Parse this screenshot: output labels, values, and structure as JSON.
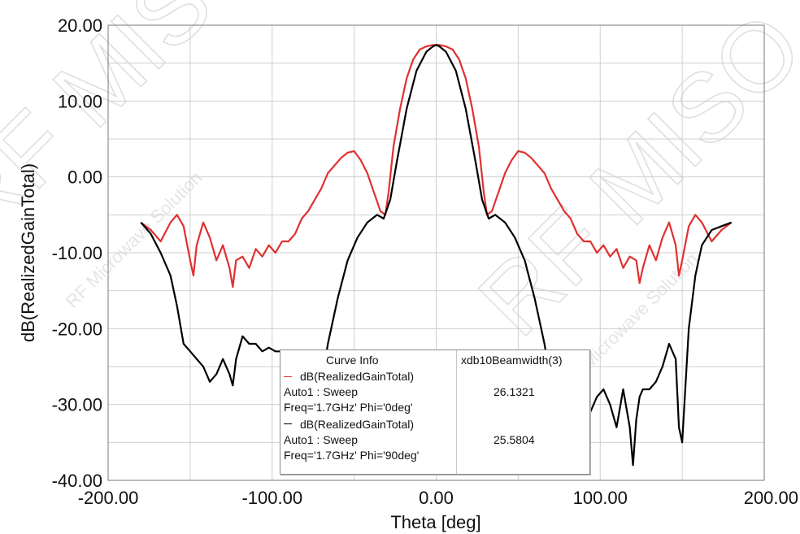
{
  "colors": {
    "series1": "#e03030",
    "series2": "#000000",
    "grid": "#cfcfcf",
    "frame": "#7a7a7a"
  },
  "watermark": {
    "brand": "RF MISO",
    "tagline": "RF Microwave Solution"
  },
  "chart_data": {
    "type": "line",
    "xlabel": "Theta [deg]",
    "ylabel": "dB(RealizedGainTotal)",
    "xlim": [
      -200,
      200
    ],
    "ylim": [
      -40,
      20
    ],
    "xticks": [
      "-200.00",
      "-100.00",
      "0.00",
      "100.00",
      "200.00"
    ],
    "yticks": [
      "20.00",
      "10.00",
      "0.00",
      "-10.00",
      "-20.00",
      "-30.00",
      "-40.00"
    ],
    "grid": true,
    "legend_position": "bottom-center",
    "series": [
      {
        "name": "dB(RealizedGainTotal)",
        "color": "#e03030",
        "x": [
          -180,
          -174,
          -168,
          -162,
          -158,
          -154,
          -150,
          -148,
          -146,
          -142,
          -138,
          -134,
          -130,
          -126,
          -124,
          -122,
          -118,
          -114,
          -110,
          -106,
          -102,
          -98,
          -94,
          -90,
          -86,
          -82,
          -78,
          -74,
          -70,
          -66,
          -62,
          -58,
          -54,
          -50,
          -46,
          -42,
          -38,
          -34,
          -31,
          -29,
          -26,
          -22,
          -18,
          -14,
          -10,
          -6,
          -2,
          0,
          2,
          6,
          10,
          14,
          18,
          22,
          26,
          29,
          31,
          34,
          38,
          42,
          46,
          50,
          54,
          58,
          62,
          66,
          70,
          74,
          78,
          82,
          86,
          90,
          94,
          98,
          102,
          106,
          110,
          114,
          118,
          122,
          124,
          126,
          130,
          134,
          138,
          142,
          146,
          148,
          150,
          154,
          158,
          162,
          168,
          174,
          180
        ],
        "y": [
          -6,
          -7,
          -8.5,
          -6,
          -5,
          -6.5,
          -11,
          -13,
          -9,
          -6,
          -8,
          -11,
          -9,
          -12,
          -14.5,
          -11,
          -10.5,
          -12,
          -9.5,
          -10.5,
          -9,
          -10,
          -8.5,
          -8.5,
          -7.5,
          -5.5,
          -4.5,
          -3,
          -1.5,
          0.5,
          1.5,
          2.5,
          3.2,
          3.4,
          2.2,
          0.5,
          -2,
          -4.5,
          -5,
          -2,
          4,
          9,
          13,
          15.5,
          16.8,
          17.2,
          17.4,
          17.4,
          17.4,
          17.2,
          16.8,
          15.5,
          13,
          9,
          4,
          -2,
          -5,
          -4.5,
          -2,
          0.5,
          2.2,
          3.4,
          3.2,
          2.5,
          1.5,
          0.5,
          -1.5,
          -3,
          -4.5,
          -5.5,
          -7.5,
          -8.5,
          -8.5,
          -10,
          -9,
          -10.5,
          -9.5,
          -12,
          -10.5,
          -11,
          -14,
          -12,
          -9,
          -11,
          -8,
          -6,
          -9,
          -13,
          -11,
          -6.5,
          -5,
          -6,
          -8.5,
          -7,
          -6
        ]
      },
      {
        "name": "dB(RealizedGainTotal)",
        "color": "#000000",
        "x": [
          -180,
          -174,
          -168,
          -162,
          -158,
          -154,
          -150,
          -146,
          -142,
          -138,
          -134,
          -130,
          -126,
          -124,
          -122,
          -118,
          -114,
          -110,
          -106,
          -102,
          -98,
          -94,
          -90,
          -84,
          -78,
          -72,
          -66,
          -60,
          -54,
          -48,
          -42,
          -36,
          -32,
          -28,
          -24,
          -18,
          -12,
          -6,
          -2,
          0,
          2,
          6,
          12,
          18,
          24,
          28,
          32,
          36,
          42,
          48,
          54,
          60,
          66,
          72,
          78,
          84,
          90,
          94,
          98,
          102,
          106,
          110,
          114,
          118,
          120,
          122,
          124,
          126,
          130,
          134,
          138,
          142,
          146,
          148,
          150,
          154,
          158,
          162,
          168,
          174,
          180
        ],
        "y": [
          -6,
          -7.5,
          -10,
          -13,
          -17,
          -22,
          -23,
          -24,
          -25,
          -27,
          -26,
          -24,
          -26,
          -27.5,
          -24,
          -21,
          -22,
          -22,
          -23,
          -22.5,
          -23,
          -23,
          -24,
          -30,
          -35,
          -30,
          -22,
          -16,
          -11,
          -8,
          -6,
          -5,
          -5.5,
          -3,
          2,
          9,
          14,
          16.5,
          17.2,
          17.4,
          17.2,
          16.5,
          14,
          9,
          2,
          -3,
          -5.5,
          -5,
          -6,
          -8,
          -11,
          -16,
          -22,
          -30,
          -35,
          -30,
          -29,
          -31,
          -29,
          -28,
          -30,
          -33,
          -28,
          -33,
          -38,
          -32,
          -29,
          -28,
          -28,
          -27,
          -25,
          -22,
          -24,
          -33,
          -35,
          -20,
          -13,
          -9,
          -7,
          -6.5,
          -6
        ]
      }
    ]
  },
  "legend": {
    "header_label": "Curve Info",
    "header_value_label": "xdb10Beamwidth(3)",
    "entries": [
      {
        "name": "dB(RealizedGainTotal)",
        "line2": "Auto1 : Sweep",
        "line3": "Freq='1.7GHz' Phi='0deg'",
        "value": "26.1321"
      },
      {
        "name": "dB(RealizedGainTotal)",
        "line2": "Auto1 : Sweep",
        "line3": "Freq='1.7GHz' Phi='90deg'",
        "value": "25.5804"
      }
    ]
  }
}
